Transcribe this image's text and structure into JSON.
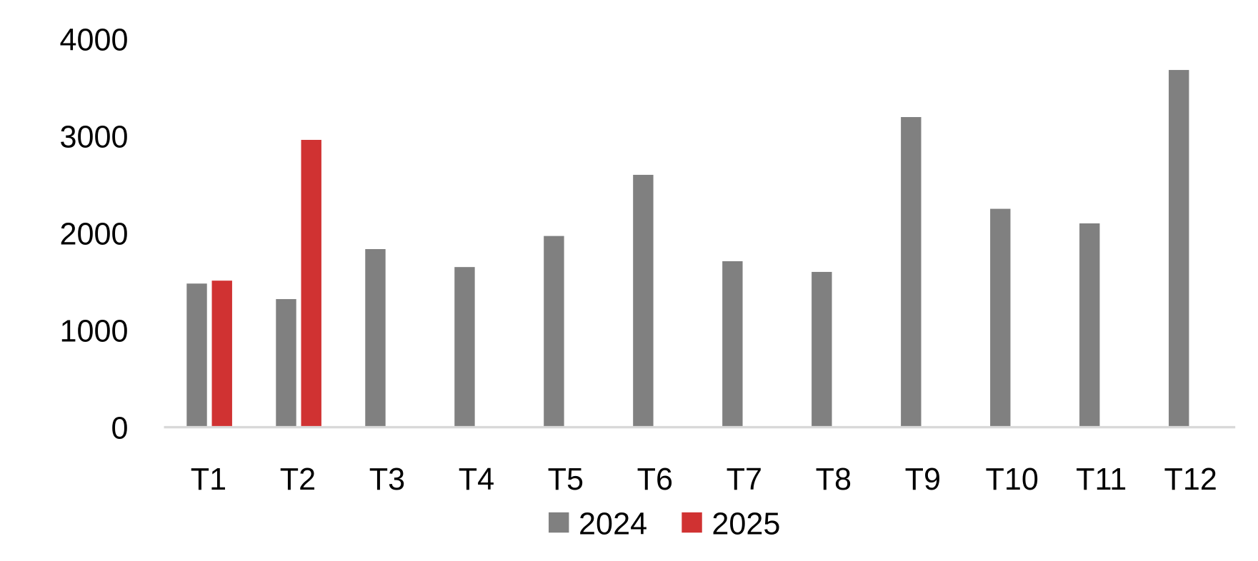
{
  "chart_data": {
    "type": "bar",
    "title": "",
    "xlabel": "",
    "ylabel": "",
    "categories": [
      "T1",
      "T2",
      "T3",
      "T4",
      "T5",
      "T6",
      "T7",
      "T8",
      "T9",
      "T10",
      "T11",
      "T12"
    ],
    "series": [
      {
        "name": "2024",
        "color": "#808080",
        "values": [
          1480,
          1320,
          1835,
          1650,
          1970,
          2600,
          1710,
          1600,
          3195,
          2250,
          2100,
          3680
        ]
      },
      {
        "name": "2025",
        "color": "#d03232",
        "values": [
          1510,
          2960,
          null,
          null,
          null,
          null,
          null,
          null,
          null,
          null,
          null,
          null
        ]
      }
    ],
    "ylim": [
      0,
      4000
    ],
    "yticks": [
      "0",
      "1000",
      "2000",
      "3000",
      "4000"
    ],
    "grid": false,
    "legend": "bottom"
  }
}
